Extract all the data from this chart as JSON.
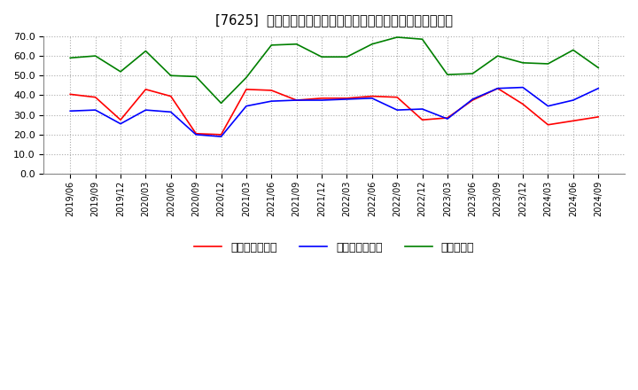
{
  "title": "[7625]  売上債権回転率、買入債務回転率、在庫回転率の推移",
  "x_labels": [
    "2019/06",
    "2019/09",
    "2019/12",
    "2020/03",
    "2020/06",
    "2020/09",
    "2020/12",
    "2021/03",
    "2021/06",
    "2021/09",
    "2021/12",
    "2022/03",
    "2022/06",
    "2022/09",
    "2022/12",
    "2023/03",
    "2023/06",
    "2023/09",
    "2023/12",
    "2024/03",
    "2024/06",
    "2024/09"
  ],
  "receivable_turnover": [
    40.5,
    39.0,
    27.5,
    43.0,
    39.5,
    20.5,
    20.0,
    43.0,
    42.5,
    37.5,
    38.5,
    38.5,
    39.5,
    39.0,
    27.5,
    28.5,
    37.5,
    43.5,
    35.5,
    25.0,
    27.0,
    29.0
  ],
  "payable_turnover": [
    32.0,
    32.5,
    25.5,
    32.5,
    31.5,
    20.0,
    19.0,
    34.5,
    37.0,
    37.5,
    37.5,
    38.0,
    38.5,
    32.5,
    33.0,
    28.0,
    38.0,
    43.5,
    44.0,
    34.5,
    37.5,
    43.5
  ],
  "inventory_turnover": [
    59.0,
    60.0,
    52.0,
    62.5,
    50.0,
    49.5,
    36.0,
    49.0,
    65.5,
    66.0,
    59.5,
    59.5,
    66.0,
    69.5,
    68.5,
    50.5,
    51.0,
    60.0,
    56.5,
    56.0,
    63.0,
    54.0
  ],
  "receivable_color": "#ff0000",
  "payable_color": "#0000ff",
  "inventory_color": "#008000",
  "legend_labels": [
    "売上債権回転率",
    "買入債務回転率",
    "在庫回転率"
  ],
  "ylim": [
    0.0,
    70.0
  ],
  "yticks": [
    0.0,
    10.0,
    20.0,
    30.0,
    40.0,
    50.0,
    60.0,
    70.0
  ],
  "bg_color": "#ffffff",
  "plot_bg_color": "#ffffff"
}
